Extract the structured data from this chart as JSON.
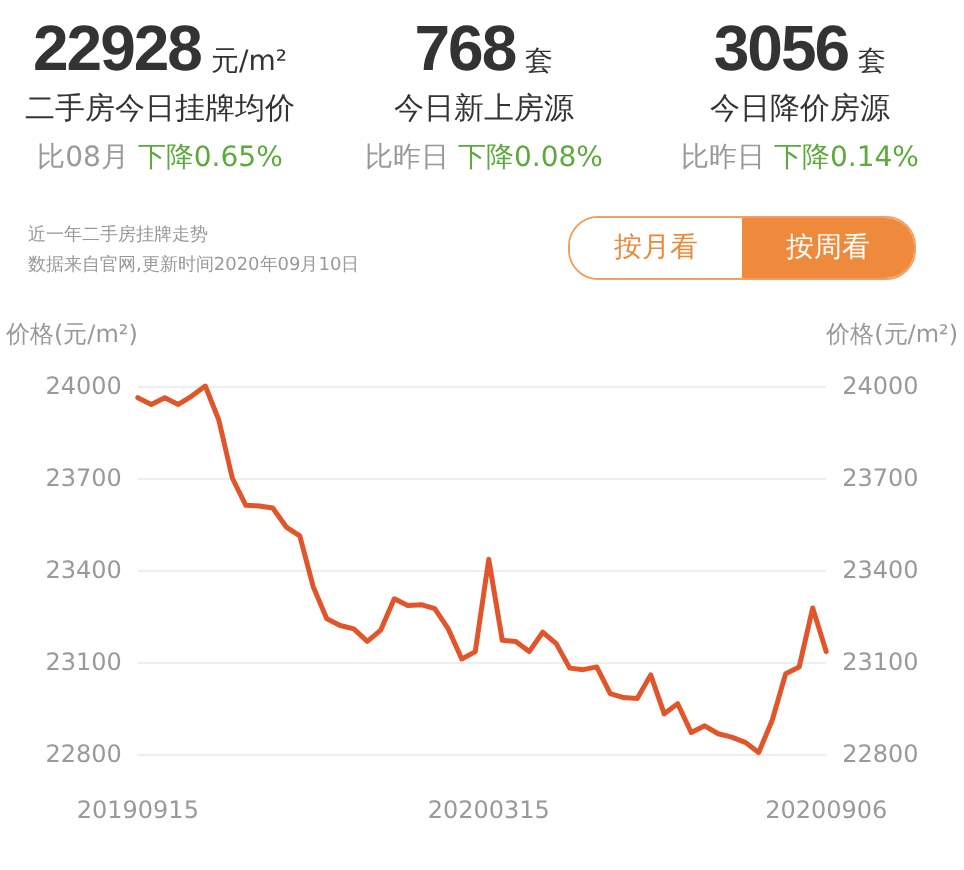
{
  "chart_data": {
    "type": "line",
    "ylabel": "价格(元/m²)",
    "y2label": "价格(元/m²)",
    "categories": [
      "20190915",
      null,
      null,
      null,
      null,
      null,
      null,
      null,
      null,
      null,
      null,
      null,
      null,
      null,
      null,
      null,
      null,
      null,
      null,
      null,
      null,
      null,
      null,
      null,
      null,
      null,
      "20200315",
      null,
      null,
      null,
      null,
      null,
      null,
      null,
      null,
      null,
      null,
      null,
      null,
      null,
      null,
      null,
      null,
      null,
      null,
      null,
      null,
      null,
      null,
      null,
      null,
      "20200906"
    ],
    "series": [
      {
        "color": "#e0552a",
        "values": [
          23962,
          23940,
          23962,
          23940,
          23967,
          24000,
          23889,
          23700,
          23611,
          23609,
          23602,
          23540,
          23511,
          23345,
          23241,
          23219,
          23208,
          23167,
          23204,
          23306,
          23284,
          23287,
          23274,
          23208,
          23110,
          23134,
          23435,
          23171,
          23167,
          23134,
          23197,
          23160,
          23080,
          23075,
          23084,
          22997,
          22984,
          22981,
          23058,
          22931,
          22964,
          22870,
          22892,
          22866,
          22855,
          22838,
          22805,
          22910,
          23062,
          23084,
          23276,
          23134
        ]
      }
    ],
    "ylim": [
      22800,
      24000
    ],
    "yticks": [
      22800,
      23100,
      23400,
      23700,
      24000
    ],
    "y2lim": [
      22800,
      24000
    ],
    "y2ticks": [
      22800,
      23100,
      23400,
      23700,
      24000
    ],
    "grid": "y",
    "marker": "none",
    "line_style": "solid",
    "annotations": [
      "22928",
      "元/m²",
      "二手房今日挂牌均价",
      "比08月",
      "下降0.65%",
      "768",
      "套",
      "今日新上房源",
      "比昨日",
      "下降0.08%",
      "3056",
      "套",
      "今日降价房源",
      "比昨日",
      "下降0.14%",
      "近一年二手房挂牌走势",
      "数据来自官网,更新时间2020年09月10日",
      "按月看",
      "按周看"
    ]
  }
}
